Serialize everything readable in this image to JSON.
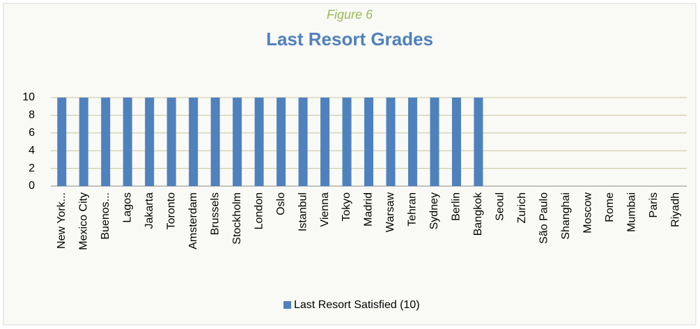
{
  "chart_data": {
    "type": "bar",
    "subtitle": "Figure 6",
    "title": "Last Resort Grades",
    "categories": [
      "New York...",
      "Mexico City",
      "Buenos...",
      "Lagos",
      "Jakarta",
      "Toronto",
      "Amsterdam",
      "Brussels",
      "Stockholm",
      "London",
      "Oslo",
      "Istanbul",
      "Vienna",
      "Tokyo",
      "Madrid",
      "Warsaw",
      "Tehran",
      "Sydney",
      "Berlin",
      "Bangkok",
      "Seoul",
      "Zurich",
      "São Paulo",
      "Shanghai",
      "Moscow",
      "Rome",
      "Mumbai",
      "Paris",
      "Riyadh"
    ],
    "series": [
      {
        "name": "Last Resort Satisfied (10)",
        "color": "#4f81bd",
        "values": [
          10,
          10,
          10,
          10,
          10,
          10,
          10,
          10,
          10,
          10,
          10,
          10,
          10,
          10,
          10,
          10,
          10,
          10,
          10,
          10,
          0,
          0,
          0,
          0,
          0,
          0,
          0,
          0,
          0
        ]
      }
    ],
    "ylim": [
      0,
      10
    ],
    "yticks": [
      0,
      2,
      4,
      6,
      8,
      10
    ],
    "grid": true,
    "legend": "bottom"
  }
}
